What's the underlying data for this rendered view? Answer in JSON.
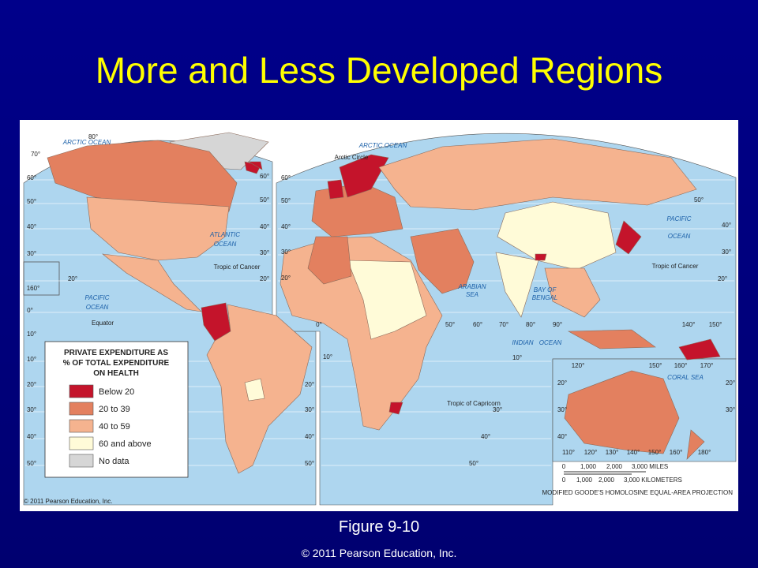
{
  "slide": {
    "title": "More and Less Developed Regions",
    "caption": "Figure 9-10",
    "footer": "© 2011 Pearson Education, Inc."
  },
  "map": {
    "legend": {
      "title": [
        "PRIVATE EXPENDITURE AS",
        "% OF TOTAL EXPENDITURE",
        "ON HEALTH"
      ],
      "items": [
        {
          "label": "Below 20",
          "color": "#c4142b"
        },
        {
          "label": "20 to 39",
          "color": "#e3805f"
        },
        {
          "label": "40 to 59",
          "color": "#f5b38f"
        },
        {
          "label": "60 and above",
          "color": "#fffbd8"
        },
        {
          "label": "No data",
          "color": "#d6d6d6"
        }
      ]
    },
    "labels": [
      "ARCTIC OCEAN",
      "ARCTIC OCEAN",
      "Arctic Circle",
      "ATLANTIC",
      "OCEAN",
      "PACIFIC",
      "OCEAN",
      "PACIFIC",
      "OCEAN",
      "Tropic of Cancer",
      "Tropic of Cancer",
      "Equator",
      "ARABIAN",
      "SEA",
      "BAY OF",
      "BENGAL",
      "INDIAN",
      "OCEAN",
      "Tropic of Capricorn",
      "CORAL SEA"
    ],
    "degree_labels": [
      "80°",
      "70°",
      "60°",
      "50°",
      "40°",
      "30°",
      "20°",
      "160°",
      "60°",
      "50°",
      "40°",
      "30°",
      "20°",
      "60°",
      "50°",
      "40°",
      "30°",
      "20°",
      "0°",
      "50°",
      "40°",
      "30°",
      "20°",
      "50°",
      "60°",
      "70°",
      "80°",
      "90°",
      "140°",
      "150°",
      "10°",
      "0°",
      "10°",
      "20°",
      "30°",
      "40°",
      "50°",
      "10°",
      "20°",
      "30°",
      "40°",
      "50°",
      "10°",
      "30°",
      "40°",
      "50°",
      "120°",
      "150°",
      "160°",
      "170°",
      "20°",
      "20°",
      "30°",
      "30°",
      "40°",
      "110°",
      "120°",
      "130°",
      "140°",
      "150°",
      "160°",
      "180°"
    ],
    "scale": {
      "miles": [
        "0",
        "1,000",
        "2,000",
        "3,000 MILES"
      ],
      "kilometers": [
        "0",
        "1,000",
        "2,000",
        "3,000 KILOMETERS"
      ]
    },
    "projection": "MODIFIED GOODE'S HOMOLOSINE EQUAL-AREA PROJECTION",
    "credit": "© 2011 Pearson Education, Inc."
  }
}
